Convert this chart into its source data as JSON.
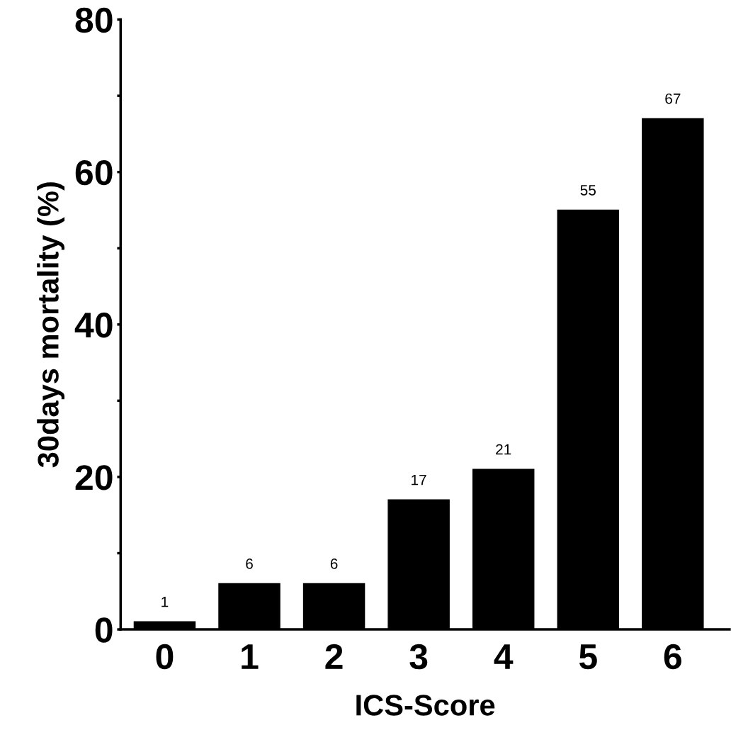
{
  "chart_data": {
    "type": "bar",
    "xlabel": "ICS-Score",
    "ylabel": "30days mortality (%)",
    "categories": [
      "0",
      "1",
      "2",
      "3",
      "4",
      "5",
      "6"
    ],
    "values": [
      1,
      6,
      6,
      17,
      21,
      55,
      67
    ],
    "color": "#000000",
    "data_labels": true,
    "grid": false,
    "legend": false,
    "ylim": [
      0,
      80
    ],
    "yticks": [
      0,
      {
        "value": 10,
        "label": null
      },
      20,
      {
        "value": 30,
        "label": null
      },
      40,
      {
        "value": 50,
        "label": null
      },
      60,
      {
        "value": 70,
        "label": null
      },
      80
    ]
  }
}
